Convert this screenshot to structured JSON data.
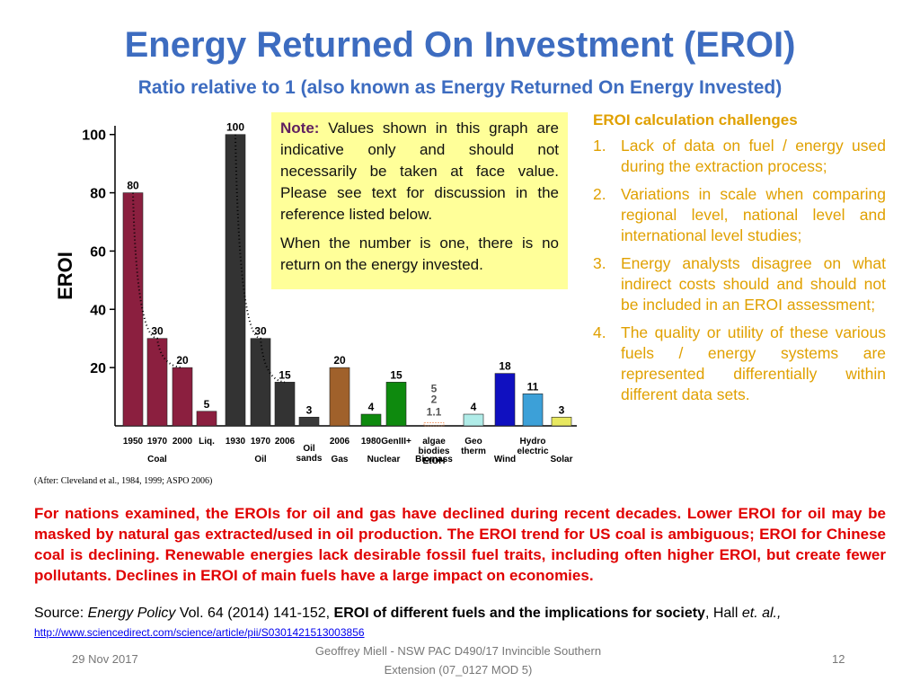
{
  "slide": {
    "title": "Energy Returned On Investment (EROI)",
    "subtitle": "Ratio relative to 1 (also known as Energy Returned On Energy Invested)",
    "note": {
      "label": "Note:",
      "text": "Values shown in this graph are indicative only and should not necessarily be taken at face value. Please see text for discussion in the reference listed below.",
      "text2": "When the number is one, there is no return on the energy invested."
    },
    "challenges": {
      "heading": "EROI calculation challenges",
      "items": [
        "Lack of data on fuel / energy used during the extraction process;",
        "Variations in scale when comparing regional level, national level and international level studies;",
        "Energy analysts disagree on what indirect costs should and should not be included in an EROI assessment;",
        "The quality or utility of these various fuels / energy systems are represented differentially within different data sets."
      ],
      "numbers": [
        "1.",
        "2.",
        "3.",
        "4."
      ]
    },
    "citation": "(After: Cleveland et al., 1984, 1999; ASPO 2006)",
    "summary": "For nations examined, the EROIs for oil and gas have declined during recent decades.  Lower EROI for oil may be masked by natural gas extracted/used in oil production.  The EROI trend for US coal is ambiguous; EROI for Chinese coal is declining.  Renewable energies lack desirable fossil fuel traits, including often higher EROI, but create fewer pollutants.  Declines in EROI of main fuels have a large impact on economies.",
    "source": [
      "Source: ",
      "Energy Policy",
      " Vol. 64 (2014) 141-152, ",
      "EROI of different fuels and the implications for society",
      ", Hall ",
      "et. al.,"
    ],
    "link": "http://www.sciencedirect.com/science/article/pii/S0301421513003856",
    "footer": {
      "date": "29 Nov 2017",
      "center": "Geoffrey Miell - NSW PAC D490/17 Invincible Southern Extension (07_0127 MOD 5)",
      "page": "12"
    }
  },
  "chart_data": {
    "type": "bar",
    "y_label": "EROI",
    "categories": [
      "1950",
      "1970",
      "2000",
      "Liq.",
      "1930",
      "1970",
      "2006",
      null,
      "2006",
      "1980",
      "GenIII+",
      "algae\nbiodies\nEtOH",
      "Geo\ntherm",
      null,
      "Hydro\nelectric",
      null
    ],
    "group_labels": [
      null,
      "Coal",
      null,
      null,
      null,
      "Oil",
      null,
      "Oil\nsands",
      "Gas",
      "Nuclear",
      null,
      "Biomass",
      null,
      "Wind",
      null,
      "Solar"
    ],
    "values": [
      80,
      30,
      20,
      5,
      100,
      30,
      15,
      3,
      20,
      4,
      15,
      1.1,
      4,
      18,
      11,
      3
    ],
    "extra_labels": [
      "5",
      "2"
    ],
    "colors": [
      "#8b1f3f",
      "#8b1f3f",
      "#8b1f3f",
      "#8b1f3f",
      "#333333",
      "#333333",
      "#333333",
      "#3a3a3a",
      "#a0612b",
      "#0e8a0e",
      "#0e8a0e",
      "#f08040",
      "#b0ece8",
      "#1010c0",
      "#3ca0d8",
      "#e8e860"
    ],
    "ylim": [
      0,
      103
    ],
    "yticks": [
      20,
      40,
      60,
      80,
      100
    ]
  }
}
